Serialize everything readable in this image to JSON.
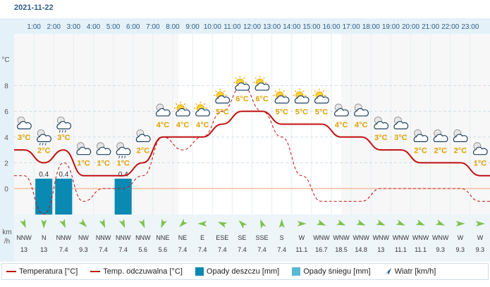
{
  "date": "2021-11-22",
  "hours": [
    "1:00",
    "2:00",
    "3:00",
    "4:00",
    "5:00",
    "6:00",
    "7:00",
    "8:00",
    "9:00",
    "10:00",
    "11:00",
    "12:00",
    "13:00",
    "14:00",
    "15:00",
    "16:00",
    "17:00",
    "18:00",
    "19:00",
    "20:00",
    "21:00",
    "22:00",
    "23:00"
  ],
  "chart_data": {
    "type": "line",
    "ylabel": "°C",
    "y_ticks": [
      0,
      2,
      4,
      6,
      8
    ],
    "ylim": [
      -2,
      10
    ],
    "temperature_series": {
      "name": "Temperatura [°C]",
      "color": "#c01010",
      "values": [
        3,
        2,
        3,
        1,
        1,
        1,
        2,
        4,
        4,
        4,
        5,
        6,
        6,
        5,
        5,
        5,
        4,
        4,
        3,
        3,
        2,
        2,
        2,
        1
      ]
    },
    "feels_like_series": {
      "name": "Temp. odczuwalna [°C]",
      "color": "#c01010",
      "style": "dashed",
      "values": [
        1,
        -2,
        2,
        -1,
        0,
        0,
        1,
        4,
        3,
        4,
        6,
        8,
        6,
        4,
        1,
        -1,
        -1,
        -1,
        0,
        0,
        0,
        0,
        0,
        -1
      ]
    },
    "rain_series": {
      "name": "Opady deszczu [mm]",
      "color": "#0a89b2",
      "values": [
        0,
        0.4,
        0.4,
        0,
        0,
        0.4,
        0,
        0,
        0,
        0,
        0,
        0,
        0,
        0,
        0,
        0,
        0,
        0,
        0,
        0,
        0,
        0,
        0,
        0
      ],
      "labels": [
        "",
        "0.4",
        "0.4",
        "",
        "",
        "0.4",
        "",
        "",
        "",
        "",
        "",
        "",
        "",
        "",
        "",
        "",
        "",
        "",
        "",
        "",
        "",
        "",
        "",
        ""
      ]
    },
    "temp_labels": [
      "3°C",
      "2°C",
      "3°C",
      "1°C",
      "1°C",
      "1°C",
      "2°C",
      "4°C",
      "4°C",
      "4°C",
      "5°C",
      "6°C",
      "6°C",
      "5°C",
      "5°C",
      "5°C",
      "4°C",
      "4°C",
      "3°C",
      "3°C",
      "2°C",
      "2°C",
      "2°C",
      "1°C"
    ],
    "weather_icons": [
      "partly-cloudy-night-icon",
      "rain-cloud-icon",
      "snow-rain-cloud-icon",
      "partly-cloudy-night-icon",
      "partly-cloudy-night-icon",
      "sleet-cloud-icon",
      "partly-cloudy-night-icon",
      "partly-cloudy-icon",
      "partly-sunny-icon",
      "partly-sunny-icon",
      "partly-sunny-icon",
      "partly-sunny-icon",
      "partly-sunny-icon",
      "partly-sunny-icon",
      "partly-sunny-icon",
      "partly-sunny-icon",
      "partly-cloudy-icon",
      "partly-cloudy-icon",
      "partly-cloudy-night-icon",
      "partly-cloudy-night-icon",
      "partly-cloudy-night-icon",
      "partly-cloudy-night-icon",
      "partly-cloudy-night-icon",
      "partly-cloudy-night-icon"
    ],
    "wind_directions": [
      "NNW",
      "N",
      "NNW",
      "NW",
      "NNW",
      "NNW",
      "NNW",
      "NNE",
      "NE",
      "E",
      "ESE",
      "SE",
      "SSE",
      "S",
      "W",
      "WNW",
      "WNW",
      "WNW",
      "WNW",
      "WNW",
      "WNW",
      "WNW",
      "W",
      "W"
    ],
    "wind_speeds": [
      "13",
      "13",
      "7.4",
      "9.3",
      "7.4",
      "7.4",
      "5.6",
      "5.6",
      "7.4",
      "7.4",
      "7.4",
      "7.4",
      "7.4",
      "7.4",
      "11.1",
      "16.7",
      "18.5",
      "14.8",
      "13",
      "11.1",
      "11.1",
      "9.3",
      "9.3",
      "9.3"
    ],
    "wind_unit": "km\n/h"
  },
  "legend": {
    "temp": "Temperatura [°C]",
    "feels": "Temp. odczuwalna [°C]",
    "rain": "Opady deszczu [mm]",
    "snow": "Opady śniegu [mm]",
    "wind": "Wiatr [km/h]"
  },
  "colors": {
    "temp": "#c01010",
    "rain": "#0a89b2",
    "snow": "#5ab8d3",
    "header": "#e5f1f8",
    "zero": "#f0a070"
  }
}
